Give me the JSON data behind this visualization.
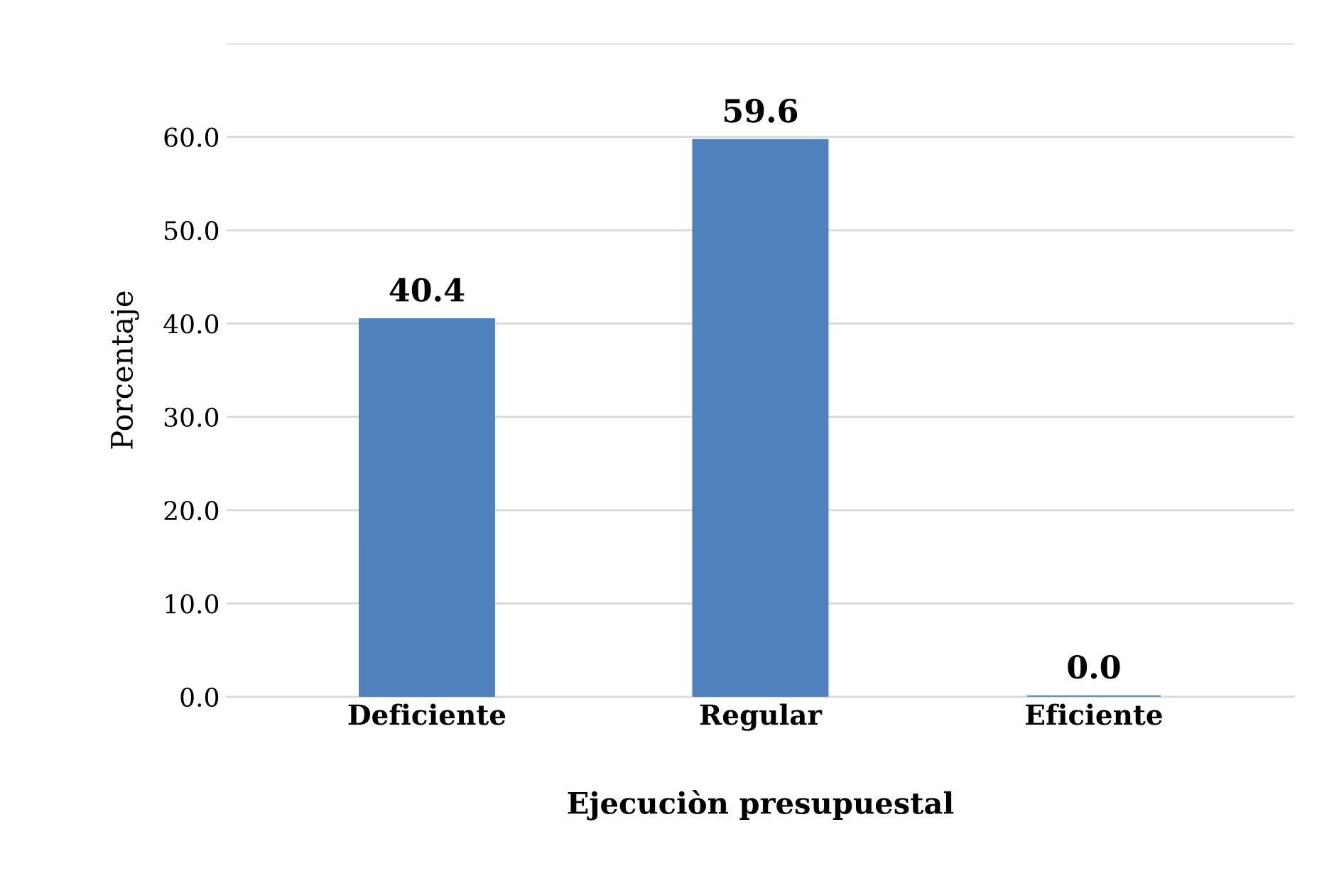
{
  "chart_data": {
    "type": "bar",
    "xlabel": "Ejecuciòn presupuestal",
    "ylabel": "Porcentaje",
    "categories": [
      "Deficiente",
      "Regular",
      "Eficiente"
    ],
    "values": [
      40.4,
      59.6,
      0.0
    ],
    "color": "#4f81bd",
    "value_labels": [
      "40.4",
      "59.6",
      "0.0"
    ],
    "ylim": [
      0,
      70
    ],
    "yticks": [
      {
        "value": 0,
        "label": "0.0"
      },
      {
        "value": 10,
        "label": "10.0"
      },
      {
        "value": 20,
        "label": "20.0"
      },
      {
        "value": 30,
        "label": "30.0"
      },
      {
        "value": 40,
        "label": "40.0"
      },
      {
        "value": 50,
        "label": "50.0"
      },
      {
        "value": 60,
        "label": "60.0"
      },
      {
        "value": 70,
        "label": null
      }
    ],
    "grid": "y",
    "legend": false
  }
}
